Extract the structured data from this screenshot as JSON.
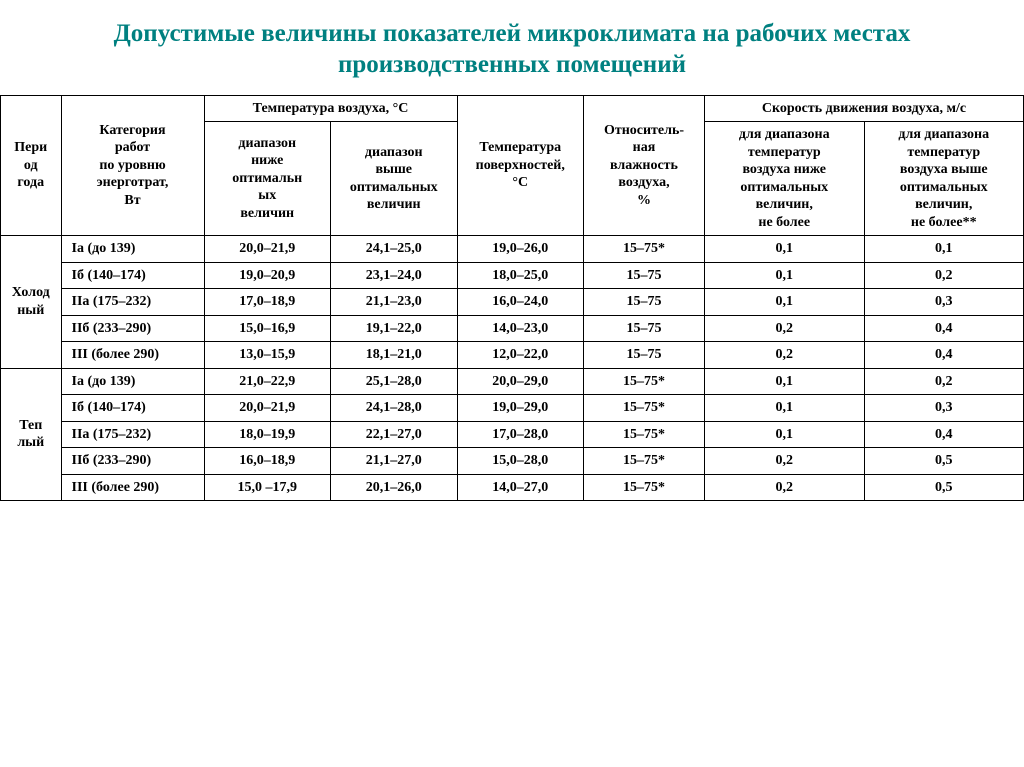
{
  "title": "Допустимые величины показателей микроклимата на рабочих местах производственных помещений",
  "columns": {
    "period": "Пери\nод\nгода",
    "category": "Категория\nработ\nпо уровню\nэнерготрат,\nВт",
    "temp_group": "Температура воздуха, °С",
    "temp_below": "диапазон\nниже\nоптимальн\nых\nвеличин",
    "temp_above": "диапазон\nвыше\nоптимальных\nвеличин",
    "surf_temp": "Температура\nповерхностей,\n°С",
    "humidity": "Относитель-\nная\nвлажность\nвоздуха,\n%",
    "speed_group": "Скорость движения воздуха, м/с",
    "speed_below": "для диапазона\nтемператур\nвоздуха ниже\nоптимальных\nвеличин,\nне более",
    "speed_above": "для диапазона\nтемператур\nвоздуха выше\nоптимальных\nвеличин,\nне более**"
  },
  "periods": {
    "cold": "Холод\nный",
    "warm": "Теп\nлый"
  },
  "rows_cold": [
    {
      "cat": "Iа (до 139)",
      "v": [
        "20,0–21,9",
        "24,1–25,0",
        "19,0–26,0",
        "15–75*",
        "0,1",
        "0,1"
      ]
    },
    {
      "cat": "Iб (140–174)",
      "v": [
        "19,0–20,9",
        "23,1–24,0",
        "18,0–25,0",
        "15–75",
        "0,1",
        "0,2"
      ]
    },
    {
      "cat": "IIа (175–232)",
      "v": [
        "17,0–18,9",
        "21,1–23,0",
        "16,0–24,0",
        "15–75",
        "0,1",
        "0,3"
      ]
    },
    {
      "cat": "IIб (233–290)",
      "v": [
        "15,0–16,9",
        "19,1–22,0",
        "14,0–23,0",
        "15–75",
        "0,2",
        "0,4"
      ]
    },
    {
      "cat": "III (более 290)",
      "v": [
        "13,0–15,9",
        "18,1–21,0",
        "12,0–22,0",
        "15–75",
        "0,2",
        "0,4"
      ]
    }
  ],
  "rows_warm": [
    {
      "cat": "Iа (до 139)",
      "v": [
        "21,0–22,9",
        "25,1–28,0",
        "20,0–29,0",
        "15–75*",
        "0,1",
        "0,2"
      ]
    },
    {
      "cat": "Iб (140–174)",
      "v": [
        "20,0–21,9",
        "24,1–28,0",
        "19,0–29,0",
        "15–75*",
        "0,1",
        "0,3"
      ]
    },
    {
      "cat": "IIа (175–232)",
      "v": [
        "18,0–19,9",
        "22,1–27,0",
        "17,0–28,0",
        "15–75*",
        "0,1",
        "0,4"
      ]
    },
    {
      "cat": "IIб (233–290)",
      "v": [
        "16,0–18,9",
        "21,1–27,0",
        "15,0–28,0",
        "15–75*",
        "0,2",
        "0,5"
      ]
    },
    {
      "cat": "III (более 290)",
      "v": [
        "15,0 –17,9",
        "20,1–26,0",
        "14,0–27,0",
        "15–75*",
        "0,2",
        "0,5"
      ]
    }
  ]
}
